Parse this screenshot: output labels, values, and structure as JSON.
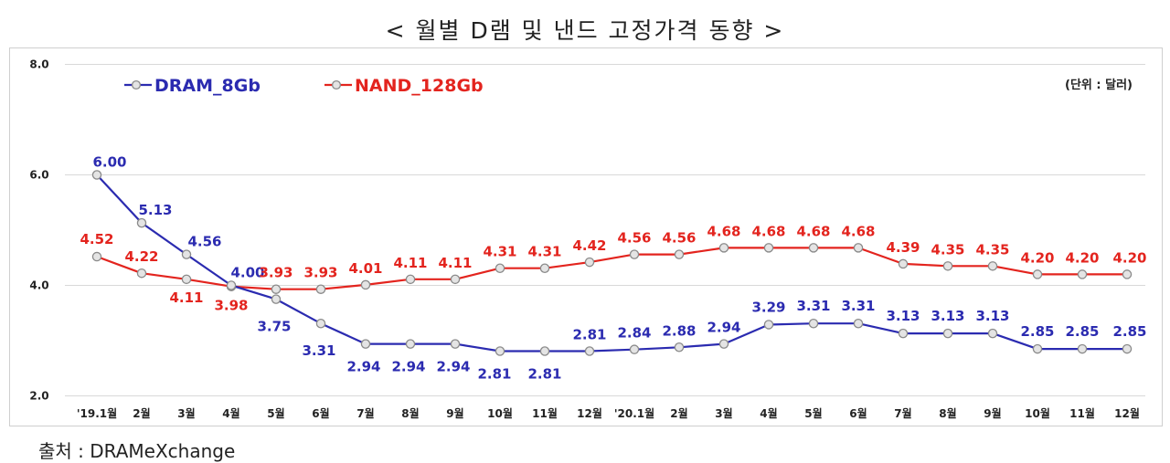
{
  "title": "< 월별 D램 및 낸드 고정가격 동향 >",
  "unit_note": "(단위 : 달러)",
  "source": "출처 : DRAMeXchange",
  "colors": {
    "dram": "#2b2bb0",
    "nand": "#e3241e",
    "marker_fill": "#e4e4e4",
    "marker_stroke": "#8a8a8a",
    "grid": "#d9d9d9"
  },
  "chart_data": {
    "type": "line",
    "title": "< 월별 D램 및 낸드 고정가격 동향 >",
    "xlabel": "",
    "ylabel": "",
    "ylim": [
      2.0,
      8.0
    ],
    "yticks": [
      "2.0",
      "4.0",
      "6.0",
      "8.0"
    ],
    "categories": [
      "'19.1월",
      "2월",
      "3월",
      "4월",
      "5월",
      "6월",
      "7월",
      "8월",
      "9월",
      "10월",
      "11월",
      "12월",
      "'20.1월",
      "2월",
      "3월",
      "4월",
      "5월",
      "6월",
      "7월",
      "8월",
      "9월",
      "10월",
      "11월",
      "12월"
    ],
    "series": [
      {
        "name": "DRAM_8Gb",
        "color": "#2b2bb0",
        "values": [
          6.0,
          5.13,
          4.56,
          4.0,
          3.75,
          3.31,
          2.94,
          2.94,
          2.94,
          2.81,
          2.81,
          2.81,
          2.84,
          2.88,
          2.94,
          3.29,
          3.31,
          3.31,
          3.13,
          3.13,
          3.13,
          2.85,
          2.85,
          2.85
        ],
        "labels": [
          "6.00",
          "5.13",
          "4.56",
          "4.00",
          "3.75",
          "3.31",
          "2.94",
          "2.94",
          "2.94",
          "2.81",
          "2.81",
          "2.81",
          "2.84",
          "2.88",
          "2.94",
          "3.29",
          "3.31",
          "3.31",
          "3.13",
          "3.13",
          "3.13",
          "2.85",
          "2.85",
          "2.85"
        ]
      },
      {
        "name": "NAND_128Gb",
        "color": "#e3241e",
        "values": [
          4.52,
          4.22,
          4.11,
          3.98,
          3.93,
          3.93,
          4.01,
          4.11,
          4.11,
          4.31,
          4.31,
          4.42,
          4.56,
          4.56,
          4.68,
          4.68,
          4.68,
          4.68,
          4.39,
          4.35,
          4.35,
          4.2,
          4.2,
          4.2
        ],
        "labels": [
          "4.52",
          "4.22",
          "4.11",
          "3.98",
          "3.93",
          "3.93",
          "4.01",
          "4.11",
          "4.11",
          "4.31",
          "4.31",
          "4.42",
          "4.56",
          "4.56",
          "4.68",
          "4.68",
          "4.68",
          "4.68",
          "4.39",
          "4.35",
          "4.35",
          "4.20",
          "4.20",
          "4.20"
        ]
      }
    ]
  }
}
